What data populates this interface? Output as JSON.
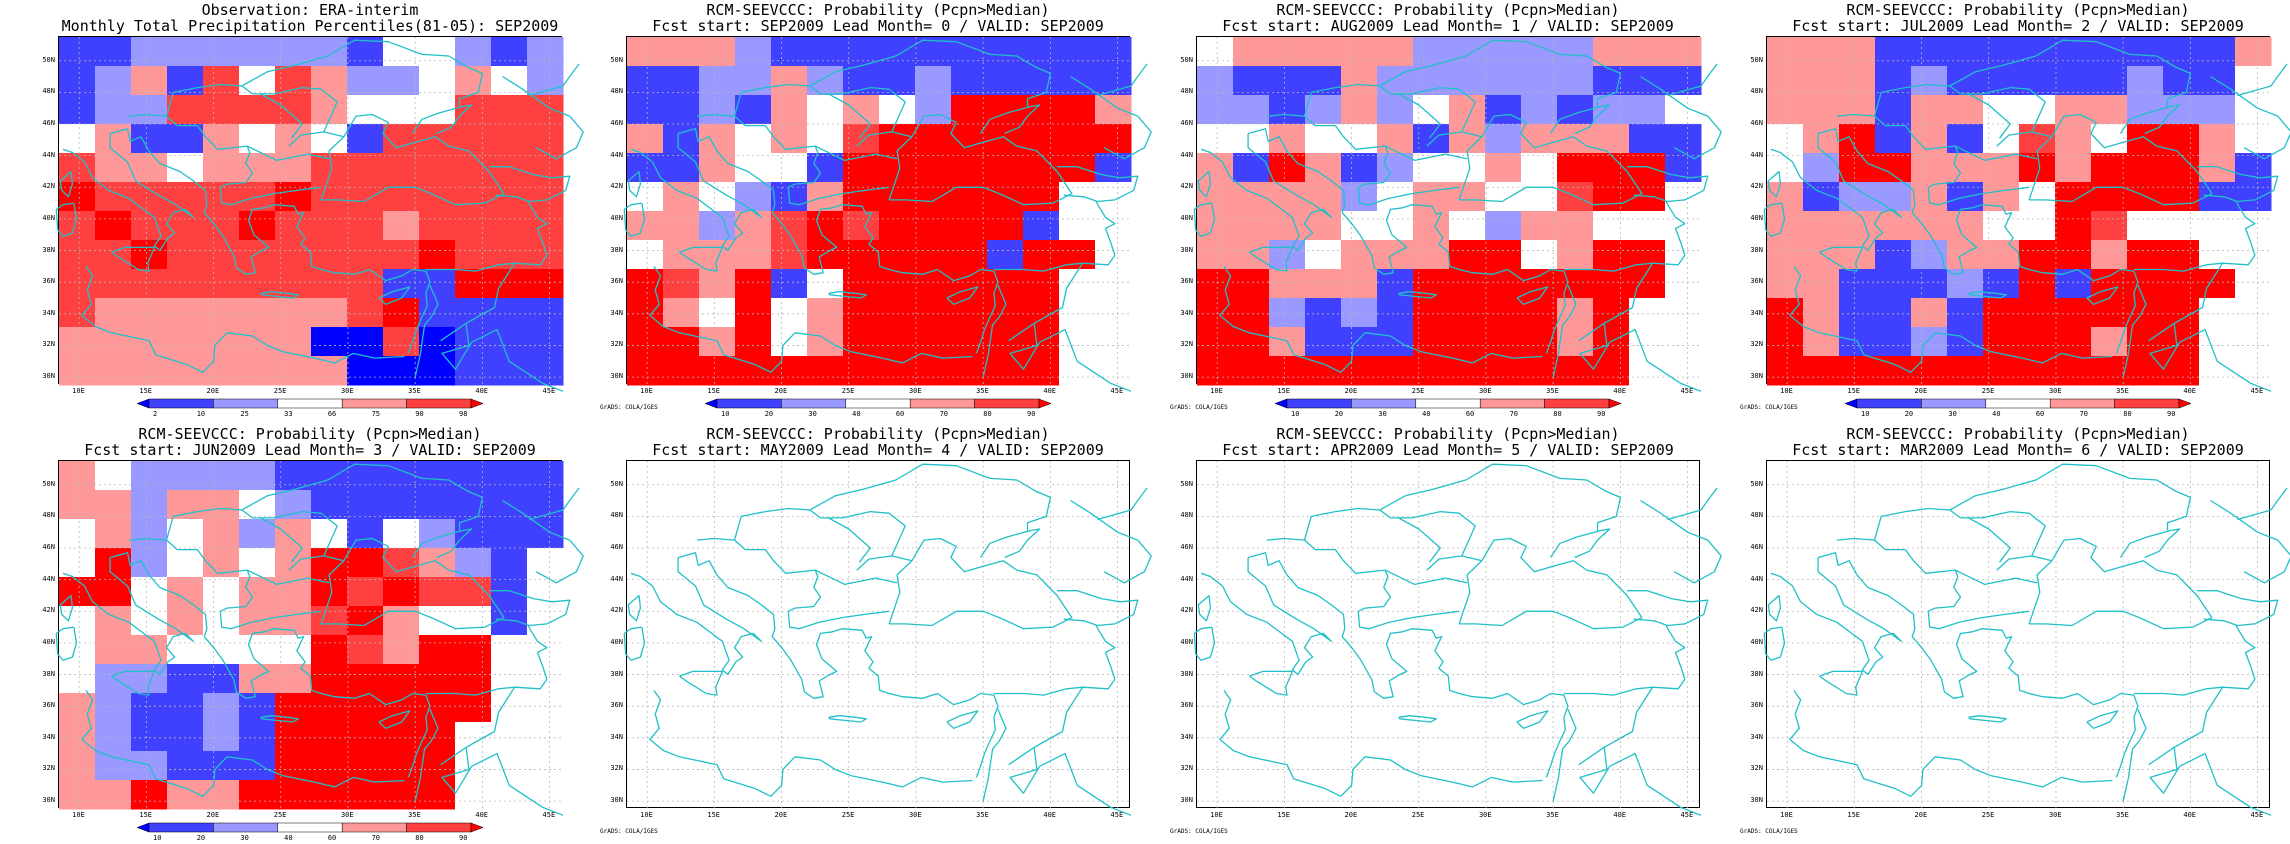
{
  "colors": {
    "strong_red": "#ff0000",
    "mid_red": "#ff4040",
    "light_red": "#ff9999",
    "white": "#ffffff",
    "light_blue": "#9999ff",
    "mid_blue": "#4040ff",
    "strong_blue": "#0000ff",
    "coast": "#20c0c8",
    "grid": "#b8b8b8"
  },
  "axes": {
    "lat_labels": [
      "50N",
      "48N",
      "46N",
      "44N",
      "42N",
      "40N",
      "38N",
      "36N",
      "34N",
      "32N",
      "30N"
    ],
    "lon_labels": [
      "10E",
      "15E",
      "20E",
      "25E",
      "30E",
      "35E",
      "40E",
      "45E"
    ]
  },
  "credit": "GrADS: COLA/IGES",
  "panels": [
    {
      "title1": "Observation: ERA-interim",
      "title2": "Monthly Total Precipitation Percentiles(81-05): SEP2009",
      "colorbar_ticks": [
        "2",
        "10",
        "25",
        "33",
        "66",
        "75",
        "90",
        "98"
      ],
      "credit": "",
      "rows": [
        "bbssssssbwwsbs",
        "bslbrwrlsswlws",
        "bssrrrrlwwwrrr",
        "wlbblwlwbrrrrr",
        "rllwlllrrrrrrr",
        "RrrrrrRrrrrrrr",
        "rRrrrRrrrlrrrr",
        "rrRrrrrrrrRrrr",
        "rrrrrrrrrbbRRR",
        "rlllllllrRbbbb",
        "lllllllSSrSbbb",
        "llllllllSSSbbb"
      ]
    },
    {
      "title1": "RCM-SEEVCCC: Probability (Pcpn>Median)",
      "title2": "Fcst start: SEP2009  Lead Month= 0 / VALID: SEP2009",
      "colorbar_ticks": [
        "10",
        "20",
        "30",
        "40",
        "60",
        "70",
        "80",
        "90"
      ],
      "credit": "GrADS: COLA/IGES",
      "rows": [
        "lllsbbbbbbbbbb",
        "bbsslsbbsbbbbb",
        "bbsblwlwsRRRRl",
        "lblwlwrRRRRRRR",
        "bblwwbRRRRRRRb",
        "wlwsblRRRRRRww",
        "llslrRrRRRRbww",
        "wlllrRRRRRbRRw",
        "RrlRbwRRRRRRww",
        "RlLRwlRRRRRRww",
        "RRlRwlRRRRRRww",
        "RRRRRRRRRRRRww"
      ]
    },
    {
      "title1": "RCM-SEEVCCC: Probability (Pcpn>Median)",
      "title2": "Fcst start: AUG2009  Lead Month= 1 / VALID: SEP2009",
      "colorbar_ticks": [
        "10",
        "20",
        "30",
        "40",
        "60",
        "70",
        "80",
        "90"
      ],
      "credit": "GrADS: COLA/IGES",
      "rows": [
        "wlllllssssslll",
        "sbbblssssssbbb",
        "ssbslswlbsbssw",
        "wwlwwlblslllbb",
        "lbRlbswwlwRRRb",
        "llllswllwwrRRw",
        "llllwwlwsllwww",
        "llswlllRRwlRRw",
        "RRlllbRRRRRRRw",
        "RRsbsbRRRRlRww",
        "RRlbbbRRRRlRww",
        "RRRRRRRRRRRRww"
      ]
    },
    {
      "title1": "RCM-SEEVCCC: Probability (Pcpn>Median)",
      "title2": "Fcst start: JUL2009  Lead Month= 2 / VALID: SEP2009",
      "colorbar_ticks": [
        "10",
        "20",
        "30",
        "40",
        "60",
        "70",
        "80",
        "90"
      ],
      "credit": "GrADS: COLA/IGES",
      "rows": [
        "lllbbbbbbbbbbl",
        "lllbsbbbbbsbbw",
        "lllbllwwllsssw",
        "wlRblbwrlwRRlw",
        "wsRRlllRlRRRlb",
        "lbsslblwRRRRbb",
        "llllllwwRrwwww",
        "lllbsllRRlRRww",
        "llbbbsbRbRRRRw",
        "RlbblbRRRRRRww",
        "RlbbsbRRRlRRww",
        "RRRRRRRRRRRRww"
      ]
    },
    {
      "title1": "RCM-SEEVCCC: Probability (Pcpn>Median)",
      "title2": "Fcst start: JUN2009  Lead Month= 3 / VALID: SEP2009",
      "colorbar_ticks": [
        "10",
        "20",
        "30",
        "40",
        "60",
        "70",
        "80",
        "90"
      ],
      "credit": "",
      "rows": [
        "lwssssbbbbbbbb",
        "llsllwsbbbbbbb",
        "wlswlslwbwsbbb",
        "wRswlwlRRrlsbw",
        "RRwlwllRrRrrbw",
        "wlwlwllrRlwwbw",
        "wllwwwwRrlRRww",
        "wssbbllRRRRRww",
        "lsbbsbRRRRRRww",
        "lsbbsbRRRRRwww",
        "lssbbbRRRRRwww",
        "llRllRRRRRRwww"
      ]
    },
    {
      "title1": "RCM-SEEVCCC: Probability (Pcpn>Median)",
      "title2": "Fcst start: MAY2009  Lead Month= 4 / VALID: SEP2009",
      "colorbar_ticks": [],
      "credit": "GrADS: COLA/IGES",
      "rows": []
    },
    {
      "title1": "RCM-SEEVCCC: Probability (Pcpn>Median)",
      "title2": "Fcst start: APR2009  Lead Month= 5 / VALID: SEP2009",
      "colorbar_ticks": [],
      "credit": "GrADS: COLA/IGES",
      "rows": []
    },
    {
      "title1": "RCM-SEEVCCC: Probability (Pcpn>Median)",
      "title2": "Fcst start: MAR2009  Lead Month= 6 / VALID: SEP2009",
      "colorbar_ticks": [],
      "credit": "GrADS: COLA/IGES",
      "rows": []
    }
  ]
}
